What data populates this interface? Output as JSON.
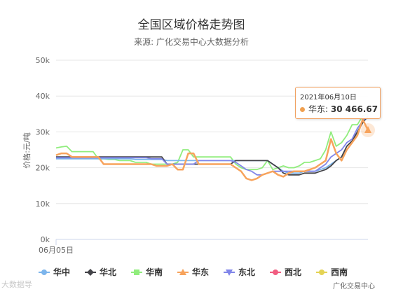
{
  "chart_data": {
    "type": "line",
    "title": "全国区域价格走势图",
    "subtitle": "来源: 广化交易中心大数据分析",
    "xlabel": "",
    "ylabel": "价格:元/吨",
    "x_tick_label": "06月05日",
    "y_ticks": [
      "0k",
      "10k",
      "20k",
      "30k",
      "40k",
      "50k"
    ],
    "ylim": [
      0,
      50000
    ],
    "grid": true,
    "legend_position": "bottom",
    "num_points": 60,
    "series": [
      {
        "name": "华中",
        "color": "#7cb5ec",
        "marker": "circle",
        "values": [
          22500,
          22500,
          22500,
          22500,
          22500,
          22500,
          22500,
          22500,
          22500,
          22500,
          22500,
          22500,
          22500,
          22500,
          22500,
          22300,
          22300,
          22300,
          22300,
          22300,
          22300,
          22000,
          22000,
          22000,
          22000,
          22000,
          22000,
          22000,
          22000,
          22000,
          22000,
          22000,
          22000,
          22000,
          22000,
          22000,
          22000,
          22000,
          22000,
          22000,
          22000,
          21000,
          20000,
          19000,
          18500,
          18500,
          18500,
          19000,
          19000,
          19000,
          19500,
          20000,
          21000,
          22000,
          23000,
          25000,
          27000,
          30000,
          33000,
          34000
        ]
      },
      {
        "name": "华北",
        "color": "#434348",
        "marker": "diamond",
        "values": [
          23000,
          23000,
          23000,
          23000,
          23000,
          23000,
          23000,
          23000,
          23000,
          23000,
          23000,
          23000,
          23000,
          23000,
          23000,
          23000,
          23000,
          23000,
          23000,
          23000,
          23000,
          21000,
          21000,
          21000,
          21000,
          21000,
          21000,
          21000,
          21000,
          21000,
          21000,
          21000,
          21000,
          21000,
          22000,
          22000,
          22000,
          22000,
          22000,
          22000,
          22000,
          21000,
          20000,
          18500,
          18000,
          18000,
          18000,
          18500,
          18500,
          18500,
          19000,
          19500,
          20500,
          22000,
          23000,
          26000,
          27500,
          30000,
          32500,
          34500
        ]
      },
      {
        "name": "华南",
        "color": "#90ed7d",
        "marker": "square",
        "values": [
          25500,
          25800,
          26000,
          24500,
          24500,
          24500,
          24500,
          24500,
          22500,
          22500,
          22300,
          22300,
          22000,
          22000,
          22000,
          21500,
          21500,
          21500,
          21000,
          21000,
          21000,
          21000,
          21000,
          21500,
          25000,
          25000,
          23000,
          23000,
          23000,
          23000,
          23000,
          23000,
          23000,
          23000,
          21000,
          20000,
          19500,
          19500,
          19500,
          20000,
          22000,
          19500,
          20000,
          20500,
          20000,
          20000,
          20500,
          21500,
          21500,
          22000,
          22500,
          25000,
          30000,
          26000,
          27000,
          29000,
          32000,
          32000,
          34500,
          35000
        ]
      },
      {
        "name": "华东",
        "color": "#f7a35c",
        "marker": "triangle",
        "values": [
          23500,
          24000,
          24000,
          23000,
          23000,
          23000,
          23000,
          23000,
          23000,
          21000,
          21000,
          21000,
          21000,
          21000,
          21000,
          21000,
          21000,
          21000,
          21000,
          20500,
          20500,
          20500,
          21000,
          19500,
          19500,
          24000,
          24000,
          21000,
          21000,
          21000,
          21000,
          21000,
          21000,
          21000,
          20000,
          19000,
          17000,
          16500,
          17000,
          18000,
          18500,
          19000,
          18000,
          17500,
          18500,
          19000,
          19000,
          19000,
          19500,
          20000,
          21000,
          22000,
          28000,
          24000,
          22000,
          25000,
          27000,
          29000,
          33500,
          30466.67
        ]
      },
      {
        "name": "东北",
        "color": "#8085e9",
        "marker": "triangle-down",
        "values": [
          22800,
          22800,
          22800,
          22800,
          22800,
          22800,
          22800,
          22800,
          22800,
          22800,
          22800,
          22800,
          22800,
          22800,
          22800,
          22800,
          22800,
          22800,
          22500,
          22500,
          22500,
          21000,
          21000,
          21000,
          21000,
          21000,
          21000,
          22000,
          22000,
          22000,
          22000,
          22000,
          22000,
          22000,
          21500,
          20500,
          19500,
          19000,
          18000,
          18000,
          18500,
          19000,
          19000,
          19000,
          19000,
          19000,
          19000,
          19000,
          19000,
          19000,
          20000,
          21000,
          23000,
          24000,
          25000,
          27000,
          28000,
          31000,
          33000,
          34500
        ]
      },
      {
        "name": "西北",
        "color": "#f15c80",
        "marker": "circle",
        "values": [
          null,
          null,
          null,
          null,
          null,
          null,
          null,
          null,
          null,
          null,
          null,
          null,
          null,
          null,
          null,
          null,
          null,
          null,
          null,
          null,
          null,
          null,
          null,
          null,
          null,
          null,
          null,
          null,
          null,
          null,
          null,
          null,
          null,
          null,
          null,
          null,
          null,
          null,
          null,
          null,
          null,
          null,
          null,
          null,
          null,
          null,
          null,
          null,
          null,
          null,
          null,
          null,
          null,
          null,
          null,
          null,
          null,
          null,
          null,
          null
        ]
      },
      {
        "name": "西南",
        "color": "#e4d354",
        "marker": "circle",
        "values": [
          null,
          null,
          null,
          null,
          null,
          null,
          null,
          null,
          null,
          null,
          null,
          null,
          null,
          null,
          null,
          null,
          null,
          null,
          null,
          null,
          null,
          null,
          null,
          null,
          null,
          null,
          null,
          null,
          null,
          null,
          null,
          null,
          null,
          null,
          null,
          null,
          null,
          null,
          null,
          null,
          null,
          null,
          null,
          null,
          null,
          null,
          null,
          null,
          null,
          null,
          null,
          null,
          null,
          null,
          null,
          null,
          null,
          null,
          null,
          null
        ]
      }
    ],
    "tooltip": {
      "date": "2021年06月10日",
      "series": "华东",
      "label": "华东:",
      "value": "30 466.67"
    },
    "credit": "广化交易中心"
  },
  "watermark": "大数据导"
}
